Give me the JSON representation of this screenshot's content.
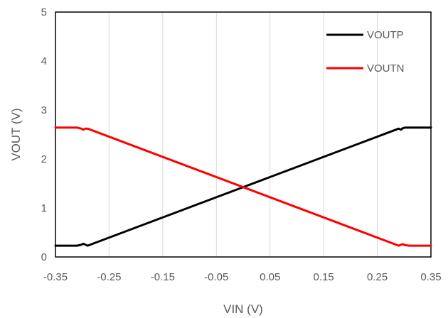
{
  "chart_data": {
    "type": "line",
    "title": "",
    "xlabel": "VIN (V)",
    "ylabel": "VOUT (V)",
    "xlim": [
      -0.35,
      0.35
    ],
    "ylim": [
      0,
      5
    ],
    "xticks": [
      -0.35,
      -0.25,
      -0.15,
      -0.05,
      0.05,
      0.15,
      0.25,
      0.35
    ],
    "xtick_labels": [
      "-0.35",
      "-0.25",
      "-0.15",
      "-0.05",
      "0.05",
      "0.15",
      "0.25",
      "0.35"
    ],
    "yticks": [
      0,
      1,
      2,
      3,
      4,
      5
    ],
    "ytick_labels": [
      "0",
      "1",
      "2",
      "3",
      "4",
      "5"
    ],
    "grid": "vertical",
    "legend_position": "top-right",
    "series": [
      {
        "name": "VOUTP",
        "color": "#000000",
        "x": [
          -0.35,
          -0.31,
          -0.302,
          -0.298,
          -0.294,
          -0.29,
          0.29,
          0.294,
          0.298,
          0.302,
          0.31,
          0.35
        ],
        "y": [
          0.23,
          0.23,
          0.25,
          0.27,
          0.25,
          0.23,
          2.62,
          2.6,
          2.63,
          2.64,
          2.64,
          2.64
        ]
      },
      {
        "name": "VOUTN",
        "color": "#ff0000",
        "x": [
          -0.35,
          -0.31,
          -0.302,
          -0.298,
          -0.294,
          -0.29,
          0.29,
          0.294,
          0.298,
          0.302,
          0.31,
          0.35
        ],
        "y": [
          2.64,
          2.64,
          2.62,
          2.6,
          2.62,
          2.62,
          0.23,
          0.25,
          0.26,
          0.24,
          0.23,
          0.23
        ]
      }
    ]
  }
}
